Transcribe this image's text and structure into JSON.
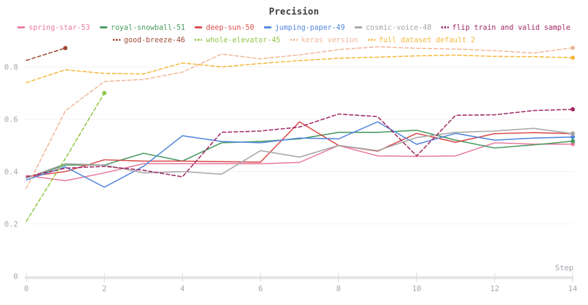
{
  "chart": {
    "title": "Precision",
    "x_axis_label": "Step",
    "y_tick_labels": [
      "0",
      "0.2",
      "0.4",
      "0.6",
      "0.8"
    ],
    "x_tick_labels": [
      "0",
      "2",
      "4",
      "6",
      "8",
      "10",
      "12",
      "14"
    ]
  },
  "chart_data": {
    "type": "line",
    "title": "Precision",
    "xlabel": "Step",
    "ylabel": "",
    "x": [
      0,
      1,
      2,
      3,
      4,
      5,
      6,
      7,
      8,
      9,
      10,
      11,
      12,
      13,
      14
    ],
    "xticks": [
      0,
      2,
      4,
      6,
      8,
      10,
      12,
      14
    ],
    "yticks": [
      0,
      0.2,
      0.4,
      0.6,
      0.8
    ],
    "xlim": [
      0,
      14
    ],
    "ylim": [
      0,
      0.9
    ],
    "grid": true,
    "legend_position": "top",
    "series": [
      {
        "name": "spring-star-53",
        "color": "#E87B9F",
        "dash": false,
        "values": [
          0.385,
          0.365,
          0.395,
          0.43,
          0.43,
          0.43,
          0.43,
          0.435,
          0.5,
          0.46,
          0.458,
          0.46,
          0.51,
          0.505,
          0.505
        ]
      },
      {
        "name": "royal-snowball-51",
        "color": "#479A5F",
        "dash": false,
        "values": [
          0.375,
          0.425,
          0.425,
          0.47,
          0.44,
          0.51,
          0.515,
          0.525,
          0.55,
          0.55,
          0.558,
          0.52,
          0.49,
          0.502,
          0.516
        ]
      },
      {
        "name": "deep-sun-50",
        "color": "#DA4C4C",
        "dash": false,
        "values": [
          0.38,
          0.4,
          0.445,
          0.44,
          0.44,
          0.438,
          0.436,
          0.59,
          0.5,
          0.478,
          0.546,
          0.512,
          0.545,
          0.549,
          0.545
        ]
      },
      {
        "name": "jumping-paper-49",
        "color": "#5387DD",
        "dash": false,
        "values": [
          0.368,
          0.418,
          0.34,
          0.42,
          0.537,
          0.515,
          0.51,
          0.528,
          0.525,
          0.59,
          0.504,
          0.546,
          0.52,
          0.528,
          0.532
        ]
      },
      {
        "name": "cosmic-voice-48",
        "color": "#A6A6A6",
        "dash": false,
        "values": [
          0.375,
          0.43,
          0.425,
          0.395,
          0.4,
          0.39,
          0.48,
          0.455,
          0.5,
          0.48,
          0.53,
          0.55,
          0.555,
          0.565,
          0.545
        ]
      },
      {
        "name": "flip train and valid sample",
        "color": "#A12864",
        "dash": true,
        "values": [
          0.38,
          0.413,
          0.42,
          0.405,
          0.38,
          0.55,
          0.555,
          0.57,
          0.62,
          0.61,
          0.46,
          0.615,
          0.617,
          0.633,
          0.638
        ]
      },
      {
        "name": "good-breeze-46",
        "color": "#9E4A35",
        "dash": true,
        "values": [
          0.825,
          0.872,
          null,
          null,
          null,
          null,
          null,
          null,
          null,
          null,
          null,
          null,
          null,
          null,
          null
        ]
      },
      {
        "name": "whole-elevator-45",
        "color": "#92C546",
        "dash": true,
        "values": [
          0.21,
          0.45,
          0.7,
          null,
          null,
          null,
          null,
          null,
          null,
          null,
          null,
          null,
          null,
          null,
          null
        ]
      },
      {
        "name": "keras version",
        "color": "#F0B899",
        "dash": true,
        "values": [
          0.336,
          0.632,
          0.744,
          0.752,
          0.78,
          0.849,
          0.831,
          0.846,
          0.866,
          0.877,
          0.871,
          0.868,
          0.862,
          0.853,
          0.873
        ]
      },
      {
        "name": "full dataset default 2",
        "color": "#F5B93C",
        "dash": true,
        "values": [
          0.74,
          0.789,
          0.775,
          0.773,
          0.815,
          0.8,
          0.813,
          0.824,
          0.833,
          0.837,
          0.842,
          0.845,
          0.84,
          0.839,
          0.835
        ]
      }
    ]
  }
}
